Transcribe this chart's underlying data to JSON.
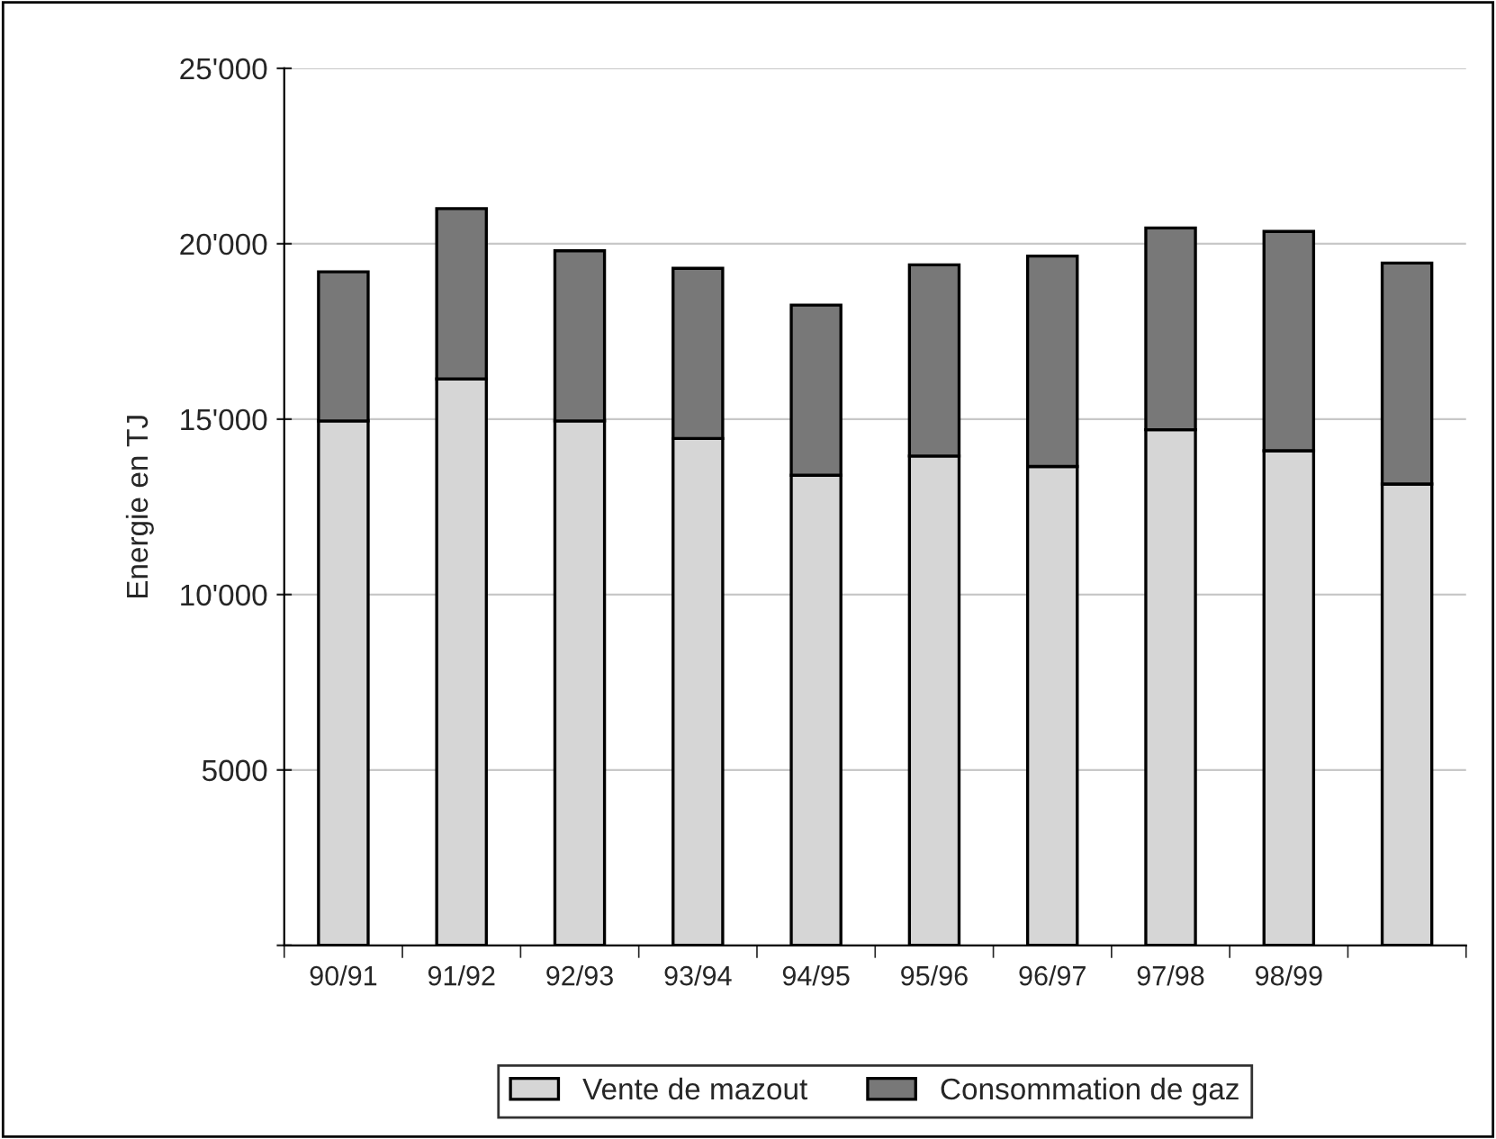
{
  "chart_data": {
    "type": "bar",
    "stacked": true,
    "ylabel": "Energie en TJ",
    "categories": [
      "90/91",
      "91/92",
      "92/93",
      "93/94",
      "94/95",
      "95/96",
      "96/97",
      "97/98",
      "98/99",
      null
    ],
    "series": [
      {
        "name": "Vente de mazout",
        "color": "#d6d6d6",
        "values": [
          14950,
          16150,
          14950,
          14450,
          13400,
          13950,
          13650,
          14700,
          14100,
          13150
        ]
      },
      {
        "name": "Consommation de gaz",
        "color": "#787878",
        "values": [
          4250,
          4850,
          4850,
          4850,
          4850,
          5450,
          6000,
          5750,
          6250,
          6300
        ]
      }
    ],
    "ylim": [
      0,
      25000
    ],
    "yticks": [
      {
        "value": 0,
        "label": null
      },
      5000,
      {
        "value": 10000,
        "label": "10'000"
      },
      {
        "value": 15000,
        "label": "15'000"
      },
      {
        "value": 20000,
        "label": "20'000"
      },
      {
        "value": 25000,
        "label": "25'000"
      }
    ],
    "grid": "y",
    "legend": "bottom"
  }
}
